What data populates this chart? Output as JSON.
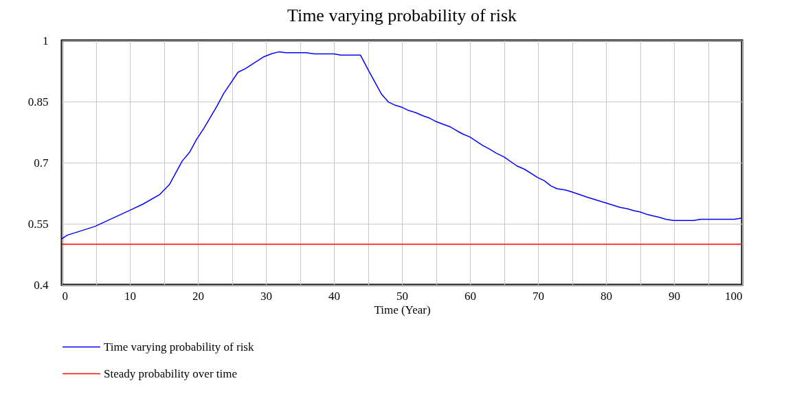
{
  "chart_data": {
    "type": "line",
    "title": "Time varying probability of risk",
    "xlabel": "Time (Year)",
    "xlim": [
      0,
      100
    ],
    "ylim": [
      0.4,
      1
    ],
    "xticks": [
      0,
      {
        "value": 5,
        "label": null
      },
      10,
      {
        "value": 15,
        "label": null
      },
      20,
      {
        "value": 25,
        "label": null
      },
      30,
      {
        "value": 35,
        "label": null
      },
      40,
      {
        "value": 45,
        "label": null
      },
      50,
      {
        "value": 55,
        "label": null
      },
      60,
      {
        "value": 65,
        "label": null
      },
      70,
      {
        "value": 75,
        "label": null
      },
      80,
      {
        "value": 85,
        "label": null
      },
      90,
      {
        "value": 95,
        "label": null
      },
      100
    ],
    "yticks": [
      0.4,
      0.55,
      0.7,
      0.85,
      1
    ],
    "grid": true,
    "legend": "bottom",
    "line_style": "solid",
    "series": [
      {
        "name": "Time varying probability of risk",
        "color": "#0000ff",
        "x": [
          0,
          0.8,
          4.8,
          10,
          11.9,
          14.4,
          15.8,
          17.7,
          18.8,
          19.8,
          20.9,
          22.8,
          23.8,
          25.9,
          27,
          29.7,
          30.9,
          31.9,
          32.9,
          35.9,
          37.1,
          40,
          41,
          43.9,
          45,
          47,
          48,
          49,
          50,
          51,
          52,
          53.1,
          54.1,
          55,
          56.1,
          57.1,
          58.1,
          59,
          60,
          60.9,
          61.9,
          62.9,
          63.9,
          65,
          66.9,
          68,
          69.9,
          70.9,
          71.9,
          72.8,
          74,
          75,
          77.3,
          80,
          82.1,
          83.1,
          84.1,
          85,
          86,
          87,
          87.8,
          88.8,
          90,
          92.9,
          93.9,
          98.8,
          100
        ],
        "values": [
          0.513,
          0.522,
          0.543,
          0.583,
          0.598,
          0.622,
          0.646,
          0.704,
          0.726,
          0.757,
          0.785,
          0.839,
          0.87,
          0.922,
          0.931,
          0.96,
          0.968,
          0.972,
          0.97,
          0.97,
          0.967,
          0.967,
          0.964,
          0.964,
          0.929,
          0.868,
          0.849,
          0.841,
          0.836,
          0.828,
          0.823,
          0.815,
          0.809,
          0.801,
          0.794,
          0.788,
          0.778,
          0.77,
          0.763,
          0.753,
          0.742,
          0.733,
          0.723,
          0.714,
          0.692,
          0.684,
          0.664,
          0.656,
          0.643,
          0.636,
          0.633,
          0.628,
          0.615,
          0.601,
          0.59,
          0.587,
          0.582,
          0.579,
          0.573,
          0.569,
          0.566,
          0.561,
          0.558,
          0.558,
          0.561,
          0.561,
          0.564
        ]
      },
      {
        "name": "Steady probability over time",
        "color": "#ff0000",
        "x": [
          0,
          100
        ],
        "values": [
          0.5,
          0.5
        ]
      }
    ]
  }
}
